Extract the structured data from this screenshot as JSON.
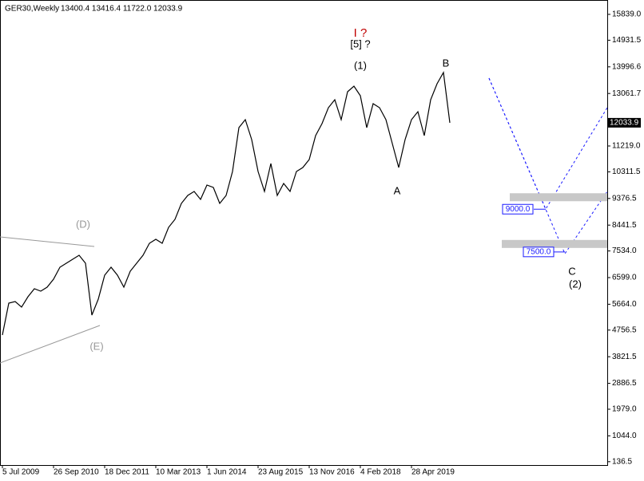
{
  "chart_data": {
    "type": "line",
    "symbol": "GER30,Weekly",
    "ohlc_text": "13400.4 13416.4 11722.0 12033.9",
    "categories": [
      "5 Jul 2009",
      null,
      null,
      null,
      null,
      null,
      null,
      null,
      "26 Sep 2010",
      null,
      null,
      null,
      null,
      null,
      null,
      null,
      "18 Dec 2011",
      null,
      null,
      null,
      null,
      null,
      null,
      null,
      "10 Mar 2013",
      null,
      null,
      null,
      null,
      null,
      null,
      null,
      "1 Jun 2014",
      null,
      null,
      null,
      null,
      null,
      null,
      null,
      "23 Aug 2015",
      null,
      null,
      null,
      null,
      null,
      null,
      null,
      "13 Nov 2016",
      null,
      null,
      null,
      null,
      null,
      null,
      null,
      "4 Feb 2018",
      null,
      null,
      null,
      null,
      null,
      null,
      null,
      "28 Apr 2019",
      null,
      null,
      null,
      null,
      null,
      null
    ],
    "series": [
      {
        "name": "GER30",
        "color": "#000000",
        "values": [
          4583,
          5703,
          5759,
          5563,
          5927,
          6207,
          6123,
          6263,
          6543,
          6963,
          7103,
          7243,
          7383,
          7103,
          5283,
          5843,
          6683,
          6963,
          6683,
          6263,
          6823,
          7103,
          7383,
          7803,
          7943,
          7803,
          8363,
          8643,
          9203,
          9483,
          9623,
          9343,
          9847,
          9763,
          9203,
          9483,
          10323,
          11863,
          12143,
          11443,
          10323,
          9623,
          10603,
          9483,
          9903,
          9623,
          10323,
          10463,
          10743,
          11583,
          12003,
          12563,
          12843,
          12143,
          13123,
          13319,
          12983,
          11863,
          12703,
          12563,
          12143,
          11303,
          10463,
          11443,
          12143,
          12423,
          11583,
          12843,
          13403,
          13800,
          12034
        ]
      }
    ],
    "ylim": [
      19,
      16287
    ],
    "yticks": [
      {
        "value": 15839,
        "label": "15839.0"
      },
      {
        "value": 14931.5,
        "label": "14931.5"
      },
      {
        "value": 13996.6,
        "label": "13996.6"
      },
      {
        "value": 13061.7,
        "label": "13061.7"
      },
      {
        "value": 11219,
        "label": "11219.0"
      },
      {
        "value": 10311.5,
        "label": "10311.5"
      },
      {
        "value": 9376.5,
        "label": "9376.5"
      },
      {
        "value": 8441.5,
        "label": "8441.5"
      },
      {
        "value": 7534,
        "label": "7534.0"
      },
      {
        "value": 6599,
        "label": "6599.0"
      },
      {
        "value": 5664,
        "label": "5664.0"
      },
      {
        "value": 4756.5,
        "label": "4756.5"
      },
      {
        "value": 3821.5,
        "label": "3821.5"
      },
      {
        "value": 2886.5,
        "label": "2886.5"
      },
      {
        "value": 1979,
        "label": "1979.0"
      },
      {
        "value": 1044,
        "label": "1044.0"
      },
      {
        "value": 136.5,
        "label": "136.5"
      }
    ],
    "last_price": {
      "value": 12033.9,
      "label": "12033.9"
    },
    "levels": [
      {
        "value": 9000,
        "label": "9000.0"
      },
      {
        "value": 7500,
        "label": "7500.0"
      }
    ],
    "annotations": [
      "I ?",
      "[5] ?",
      "(1)",
      "B",
      "A",
      "(D)",
      "(E)",
      "C",
      "(2)"
    ]
  }
}
